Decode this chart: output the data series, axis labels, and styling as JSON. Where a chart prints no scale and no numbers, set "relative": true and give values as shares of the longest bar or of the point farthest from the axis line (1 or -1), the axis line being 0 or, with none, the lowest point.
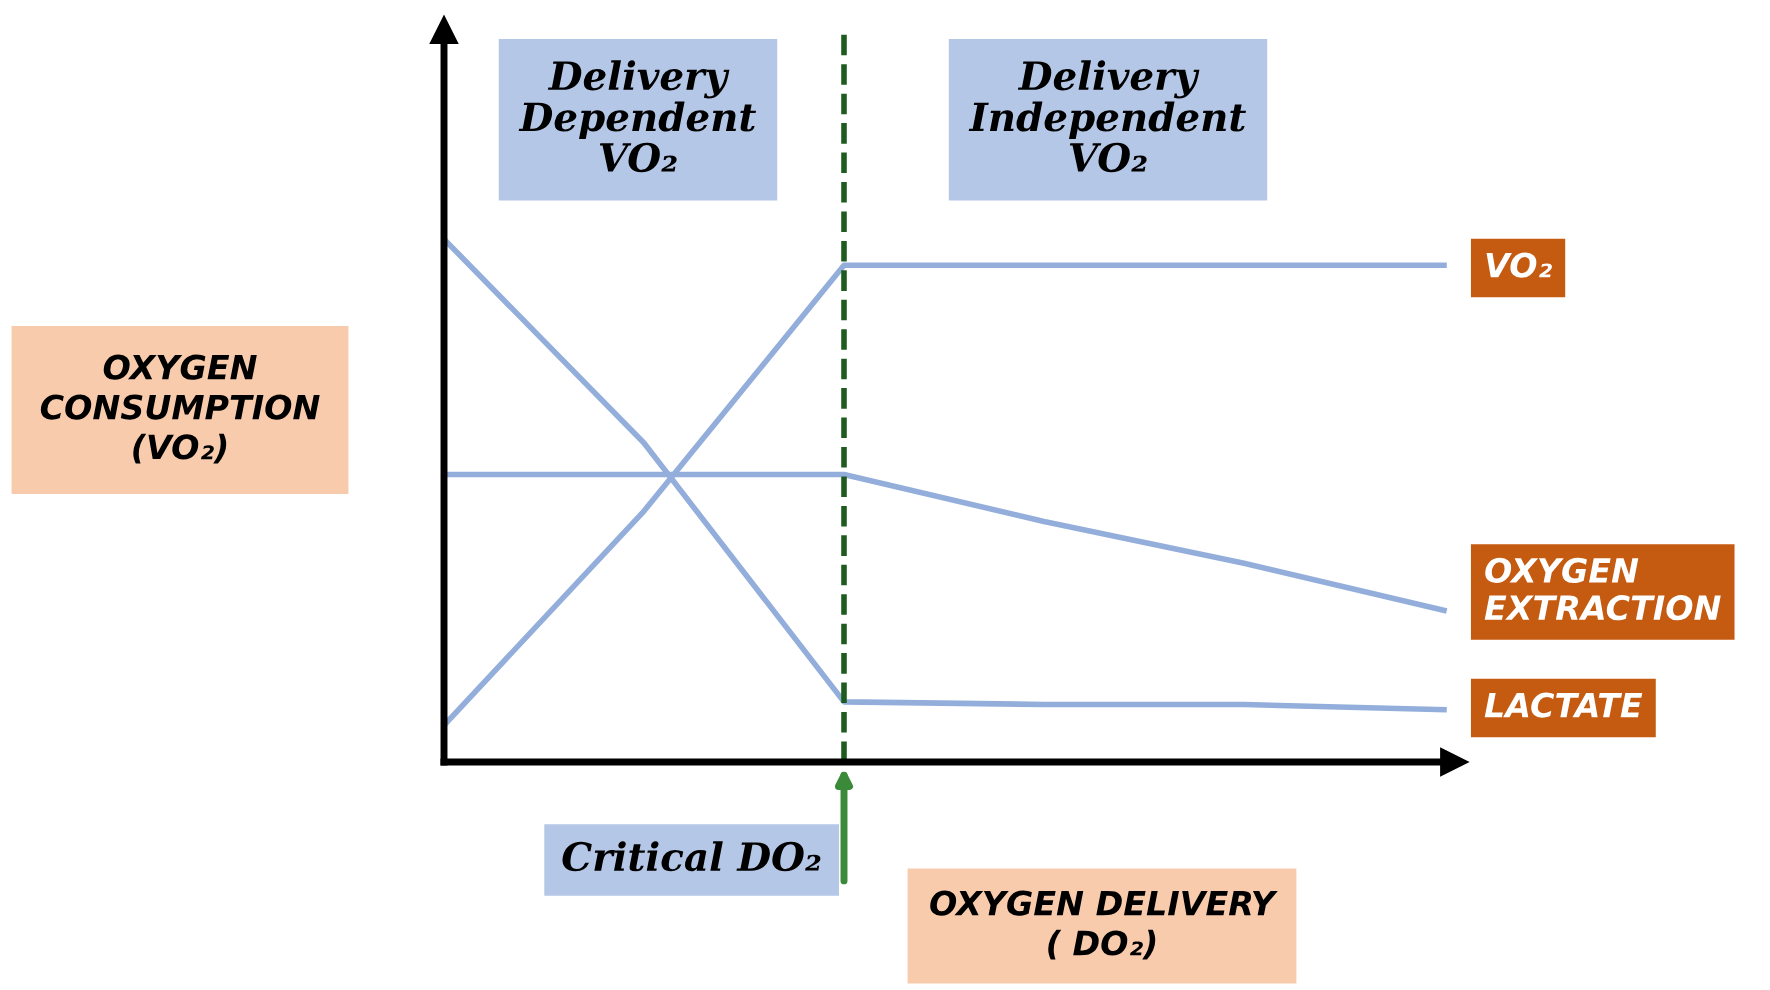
{
  "chart_data": {
    "type": "line",
    "relative": true,
    "categories": [
      null,
      null,
      null,
      null,
      null,
      null
    ],
    "series": [
      {
        "name": "VO₂",
        "color": "#94aedb",
        "values": [
          0.07,
          0.48,
          0.95,
          0.95,
          0.95,
          0.95
        ]
      },
      {
        "name": "OXYGEN EXTRACTION",
        "color": "#94aedb",
        "values": [
          0.55,
          0.55,
          0.55,
          0.46,
          0.38,
          0.29
        ]
      },
      {
        "name": "LACTATE",
        "color": "#94aedb",
        "values": [
          1.0,
          0.61,
          0.115,
          0.11,
          0.11,
          0.1
        ]
      }
    ],
    "xlabel": "OXYGEN DELIVERY ( DO₂)",
    "ylabel": "OXYGEN CONSUMPTION (VO₂)",
    "annotations": [
      "Delivery Dependent VO₂",
      "Delivery Independent VO₂",
      "Critical DO₂"
    ],
    "marker": "none",
    "line_style": "solid",
    "legend": false
  }
}
